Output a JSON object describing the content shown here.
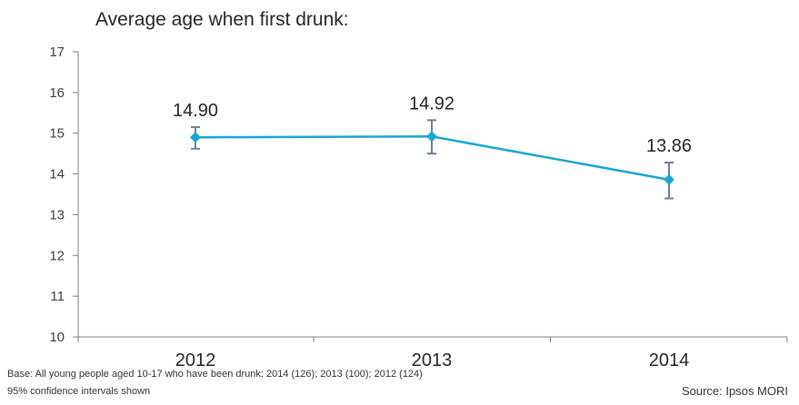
{
  "chart_data": {
    "type": "line",
    "title": "Average age when first drunk:",
    "xlabel": "",
    "ylabel": "",
    "categories": [
      "2012",
      "2013",
      "2014"
    ],
    "series": [
      {
        "values": [
          14.9,
          14.92,
          13.86
        ],
        "labels": [
          "14.90",
          "14.92",
          "13.86"
        ],
        "ci_low": [
          14.62,
          14.5,
          13.4
        ],
        "ci_high": [
          15.15,
          15.32,
          14.28
        ]
      }
    ],
    "ylim": [
      10,
      17
    ],
    "yticks": [
      "10",
      "11",
      "12",
      "13",
      "14",
      "15",
      "16",
      "17"
    ],
    "grid": false,
    "colors": {
      "line": "#1aa7d1",
      "error_bar": "#6f8190",
      "axis": "#7f7f7f"
    }
  },
  "footnotes": {
    "base": "Base: All young people aged 10-17 who have been drunk: 2014 (126); 2013 (100); 2012 (124)",
    "ci": "95% confidence intervals shown"
  },
  "source": "Source: Ipsos MORI"
}
